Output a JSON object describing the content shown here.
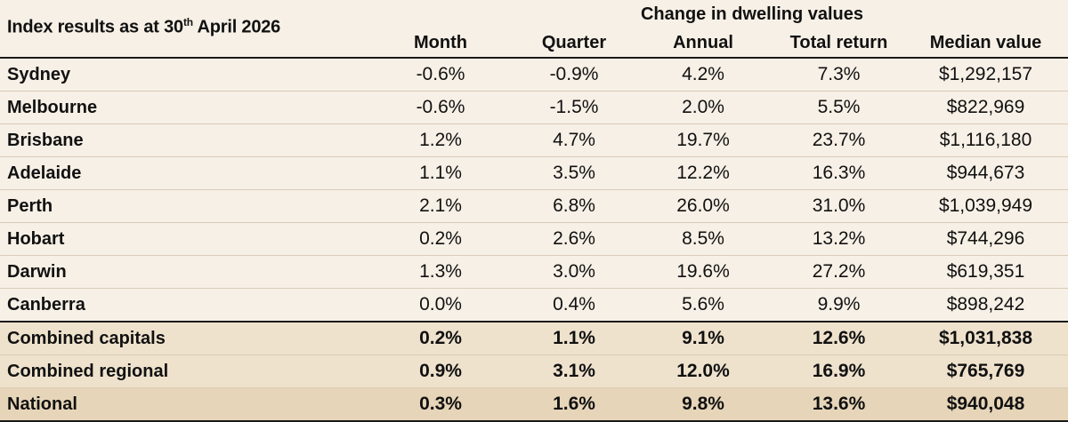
{
  "table": {
    "title_prefix": "Index results as at 30",
    "title_sup": "th",
    "title_suffix": " April 2026",
    "group_header": "Change in dwelling values",
    "columns": [
      "Month",
      "Quarter",
      "Annual",
      "Total return",
      "Median value"
    ],
    "rows": [
      {
        "name": "Sydney",
        "values": [
          "-0.6%",
          "-0.9%",
          "4.2%",
          "7.3%",
          "$1,292,157"
        ]
      },
      {
        "name": "Melbourne",
        "values": [
          "-0.6%",
          "-1.5%",
          "2.0%",
          "5.5%",
          "$822,969"
        ]
      },
      {
        "name": "Brisbane",
        "values": [
          "1.2%",
          "4.7%",
          "19.7%",
          "23.7%",
          "$1,116,180"
        ]
      },
      {
        "name": "Adelaide",
        "values": [
          "1.1%",
          "3.5%",
          "12.2%",
          "16.3%",
          "$944,673"
        ]
      },
      {
        "name": "Perth",
        "values": [
          "2.1%",
          "6.8%",
          "26.0%",
          "31.0%",
          "$1,039,949"
        ]
      },
      {
        "name": "Hobart",
        "values": [
          "0.2%",
          "2.6%",
          "8.5%",
          "13.2%",
          "$744,296"
        ]
      },
      {
        "name": "Darwin",
        "values": [
          "1.3%",
          "3.0%",
          "19.6%",
          "27.2%",
          "$619,351"
        ]
      },
      {
        "name": "Canberra",
        "values": [
          "0.0%",
          "0.4%",
          "5.6%",
          "9.9%",
          "$898,242"
        ]
      },
      {
        "name": "Combined capitals",
        "values": [
          "0.2%",
          "1.1%",
          "9.1%",
          "12.6%",
          "$1,031,838"
        ]
      },
      {
        "name": "Combined regional",
        "values": [
          "0.9%",
          "3.1%",
          "12.0%",
          "16.9%",
          "$765,769"
        ]
      },
      {
        "name": "National",
        "values": [
          "0.3%",
          "1.6%",
          "9.8%",
          "13.6%",
          "$940,048"
        ]
      }
    ]
  }
}
